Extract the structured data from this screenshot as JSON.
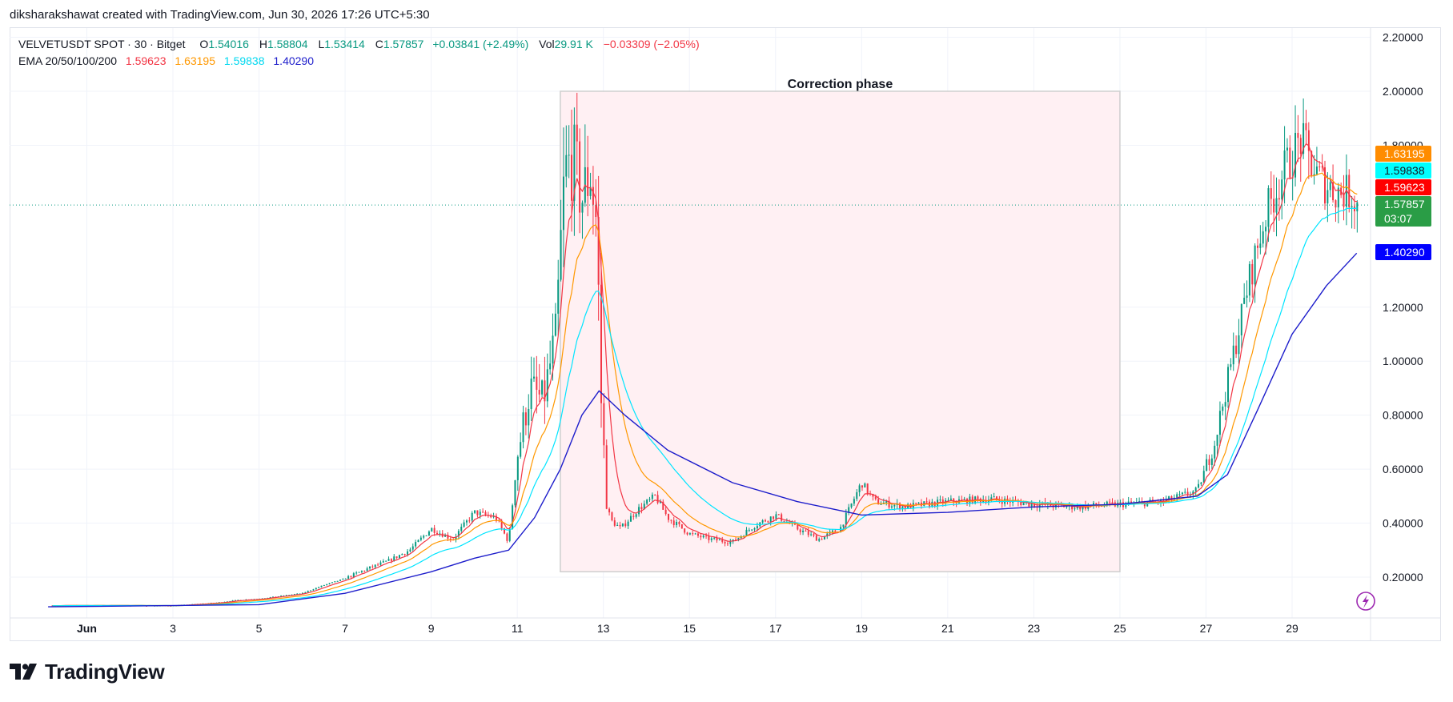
{
  "credit": "diksharakshawat created with TradingView.com, Jun 30, 2026 17:26 UTC+5:30",
  "legend": {
    "symbol": "VELVETUSDT SPOT · 30 · Bitget",
    "o_label": "O",
    "o_value": "1.54016",
    "h_label": "H",
    "h_value": "1.58804",
    "l_label": "L",
    "l_value": "1.53414",
    "c_label": "C",
    "c_value": "1.57857",
    "change": "+0.03841 (+2.49%)",
    "vol_label": "Vol",
    "vol_value": "29.91 K",
    "vol_change": "−0.03309 (−2.05%)",
    "ema_label": "EMA 20/50/100/200",
    "ema20": "1.59623",
    "ema50": "1.63195",
    "ema100": "1.59838",
    "ema200": "1.40290"
  },
  "logo_text": "TradingView",
  "icons": {
    "flash": "lightning-icon",
    "logo": "tradingview-logo-icon"
  },
  "colors": {
    "candle_up": "#089981",
    "candle_down": "#f23645",
    "ema20": "#f23645",
    "ema50": "#ff9800",
    "ema100": "#00e5ff",
    "ema200": "#1d1dcb",
    "highlight_fill": "#fff0f3",
    "highlight_border": "#cfcfcf",
    "last_price_tag": "#2a9d46",
    "ema200_tag": "#0000ff",
    "ema50_tag": "#ff8c00",
    "ema100_tag": "#00ffff",
    "ema20_tag": "#ff0000"
  },
  "chart_data": {
    "type": "candlestick",
    "symbol": "VELVETUSDT SPOT",
    "interval": "30",
    "exchange": "Bitget",
    "y_axis": {
      "ticks": [
        "2.20000",
        "2.00000",
        "1.80000",
        "1.20000",
        "1.00000",
        "0.80000",
        "0.60000",
        "0.40000",
        "0.20000"
      ],
      "range": [
        0.09,
        2.22
      ]
    },
    "x_axis": {
      "ticks": [
        "Jun",
        "3",
        "5",
        "7",
        "9",
        "11",
        "13",
        "15",
        "17",
        "19",
        "21",
        "23",
        "25",
        "27",
        "29"
      ],
      "range_days": [
        0.1,
        30.7
      ]
    },
    "annotation": {
      "text": "Correction phase",
      "from_day": 12.0,
      "to_day": 25.0,
      "price_low": 0.22,
      "price_high": 2.0
    },
    "price_tags": [
      {
        "name": "ema50",
        "value": "1.63195"
      },
      {
        "name": "ema100",
        "value": "1.59838"
      },
      {
        "name": "ema20",
        "value": "1.59623"
      },
      {
        "name": "last",
        "value": "1.57857",
        "countdown": "03:07"
      },
      {
        "name": "ema200",
        "value": "1.40290"
      }
    ],
    "last_price": 1.57857,
    "close_series": [
      [
        1,
        0.095
      ],
      [
        2,
        0.095
      ],
      [
        3,
        0.094
      ],
      [
        4,
        0.105
      ],
      [
        4.5,
        0.115
      ],
      [
        5,
        0.12
      ],
      [
        5.5,
        0.13
      ],
      [
        6,
        0.14
      ],
      [
        6.5,
        0.17
      ],
      [
        7,
        0.195
      ],
      [
        7.5,
        0.23
      ],
      [
        8,
        0.26
      ],
      [
        8.5,
        0.3
      ],
      [
        9,
        0.38
      ],
      [
        9.5,
        0.34
      ],
      [
        10,
        0.44
      ],
      [
        10.5,
        0.42
      ],
      [
        10.8,
        0.33
      ],
      [
        11,
        0.65
      ],
      [
        11.3,
        0.9
      ],
      [
        11.6,
        0.85
      ],
      [
        11.9,
        1.1
      ],
      [
        12.1,
        1.7
      ],
      [
        12.3,
        1.75
      ],
      [
        12.5,
        1.6
      ],
      [
        12.7,
        1.7
      ],
      [
        12.85,
        1.5
      ],
      [
        12.95,
        0.85
      ],
      [
        13.1,
        0.42
      ],
      [
        13.4,
        0.38
      ],
      [
        13.8,
        0.45
      ],
      [
        14.2,
        0.5
      ],
      [
        14.5,
        0.42
      ],
      [
        15,
        0.36
      ],
      [
        15.5,
        0.34
      ],
      [
        16,
        0.33
      ],
      [
        16.5,
        0.39
      ],
      [
        17,
        0.43
      ],
      [
        17.5,
        0.38
      ],
      [
        18,
        0.34
      ],
      [
        18.5,
        0.38
      ],
      [
        19,
        0.55
      ],
      [
        19.3,
        0.48
      ],
      [
        20,
        0.46
      ],
      [
        21,
        0.48
      ],
      [
        22,
        0.49
      ],
      [
        23,
        0.47
      ],
      [
        24,
        0.46
      ],
      [
        25,
        0.47
      ],
      [
        26,
        0.48
      ],
      [
        26.8,
        0.52
      ],
      [
        27.2,
        0.7
      ],
      [
        27.6,
        1.0
      ],
      [
        28,
        1.3
      ],
      [
        28.4,
        1.55
      ],
      [
        28.8,
        1.7
      ],
      [
        29.2,
        1.82
      ],
      [
        29.4,
        1.75
      ],
      [
        29.6,
        1.68
      ],
      [
        30,
        1.63
      ],
      [
        30.4,
        1.62
      ],
      [
        30.5,
        1.58
      ]
    ],
    "ema200_series": [
      [
        0.1,
        0.09
      ],
      [
        5,
        0.098
      ],
      [
        7,
        0.14
      ],
      [
        9,
        0.22
      ],
      [
        10,
        0.27
      ],
      [
        10.8,
        0.3
      ],
      [
        11.4,
        0.42
      ],
      [
        12,
        0.6
      ],
      [
        12.5,
        0.8
      ],
      [
        12.9,
        0.89
      ],
      [
        13.5,
        0.8
      ],
      [
        14.5,
        0.67
      ],
      [
        16,
        0.55
      ],
      [
        17.5,
        0.48
      ],
      [
        19,
        0.43
      ],
      [
        21,
        0.44
      ],
      [
        23,
        0.46
      ],
      [
        25,
        0.47
      ],
      [
        26.8,
        0.5
      ],
      [
        27.5,
        0.58
      ],
      [
        28.2,
        0.82
      ],
      [
        29,
        1.1
      ],
      [
        29.8,
        1.28
      ],
      [
        30.5,
        1.4
      ]
    ]
  }
}
